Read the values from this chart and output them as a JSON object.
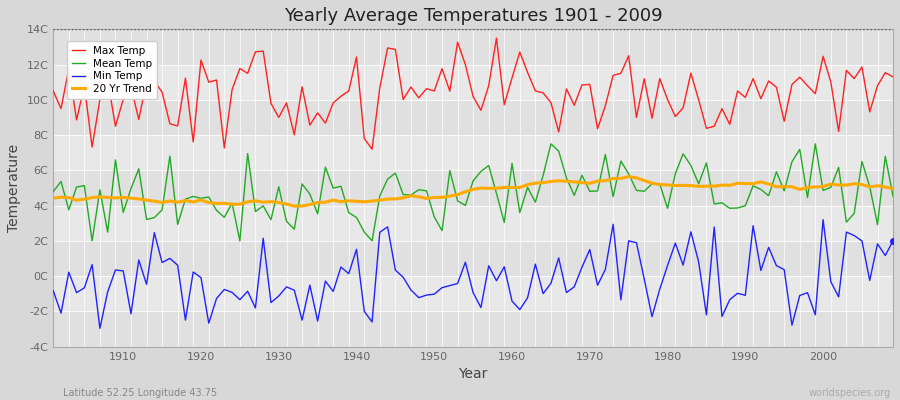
{
  "title": "Yearly Average Temperatures 1901 - 2009",
  "xlabel": "Year",
  "ylabel": "Temperature",
  "bottom_left": "Latitude 52.25 Longitude 43.75",
  "bottom_right": "worldspecies.org",
  "ylim": [
    -4,
    14
  ],
  "yticks": [
    -4,
    -2,
    0,
    2,
    4,
    6,
    8,
    10,
    12,
    14
  ],
  "ytick_labels": [
    "-4C",
    "-2C",
    "0C",
    "2C",
    "4C",
    "6C",
    "8C",
    "10C",
    "12C",
    "14C"
  ],
  "xlim": [
    1901,
    2009
  ],
  "xticks": [
    1910,
    1920,
    1930,
    1940,
    1950,
    1960,
    1970,
    1980,
    1990,
    2000
  ],
  "bg_outer": "#d8d8d8",
  "bg_inner": "#e8e8e8",
  "grid_color": "#ffffff",
  "band_colors": [
    "#e0e0e0",
    "#e8e8e8"
  ],
  "max_color": "#ff2222",
  "mean_color": "#22aa22",
  "min_color": "#2222ff",
  "trend_color": "#ffaa00",
  "legend_labels": [
    "Max Temp",
    "Mean Temp",
    "Min Temp",
    "20 Yr Trend"
  ],
  "legend_colors": [
    "#ff2222",
    "#22aa22",
    "#2222ff",
    "#ffaa00"
  ],
  "dashed_line_y": 14,
  "figsize": [
    9.0,
    4.0
  ],
  "dpi": 100
}
